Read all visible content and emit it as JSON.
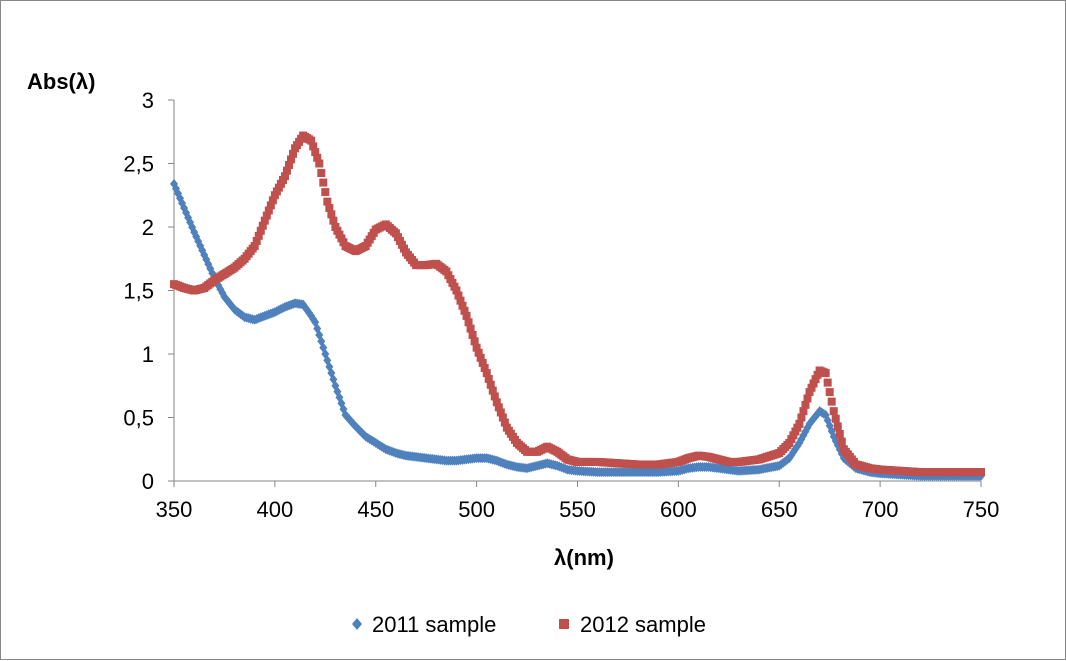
{
  "chart_data": {
    "type": "scatter",
    "xlabel": "λ(nm)",
    "ylabel": "Abs(λ)",
    "xlim": [
      350,
      750
    ],
    "ylim": [
      0,
      3
    ],
    "x_ticks": [
      "350",
      "400",
      "450",
      "500",
      "550",
      "600",
      "650",
      "700",
      "750"
    ],
    "y_ticks": [
      "0",
      "0,5",
      "1",
      "1,5",
      "2",
      "2,5",
      "3"
    ],
    "grid": false,
    "legend_position": "bottom",
    "series": [
      {
        "name": "2011 sample",
        "color": "#4F81BD",
        "marker": "diamond",
        "points": [
          [
            350,
            2.34
          ],
          [
            355,
            2.15
          ],
          [
            360,
            1.96
          ],
          [
            365,
            1.78
          ],
          [
            370,
            1.6
          ],
          [
            375,
            1.45
          ],
          [
            380,
            1.35
          ],
          [
            385,
            1.29
          ],
          [
            390,
            1.27
          ],
          [
            395,
            1.3
          ],
          [
            400,
            1.33
          ],
          [
            405,
            1.37
          ],
          [
            410,
            1.4
          ],
          [
            414,
            1.39
          ],
          [
            418,
            1.3
          ],
          [
            420,
            1.25
          ],
          [
            425,
            1.0
          ],
          [
            430,
            0.75
          ],
          [
            435,
            0.52
          ],
          [
            440,
            0.43
          ],
          [
            445,
            0.35
          ],
          [
            450,
            0.3
          ],
          [
            455,
            0.25
          ],
          [
            460,
            0.22
          ],
          [
            465,
            0.2
          ],
          [
            470,
            0.19
          ],
          [
            475,
            0.18
          ],
          [
            480,
            0.17
          ],
          [
            485,
            0.16
          ],
          [
            490,
            0.16
          ],
          [
            495,
            0.17
          ],
          [
            500,
            0.18
          ],
          [
            505,
            0.18
          ],
          [
            510,
            0.16
          ],
          [
            515,
            0.13
          ],
          [
            520,
            0.11
          ],
          [
            525,
            0.1
          ],
          [
            530,
            0.12
          ],
          [
            535,
            0.14
          ],
          [
            540,
            0.12
          ],
          [
            545,
            0.09
          ],
          [
            550,
            0.08
          ],
          [
            560,
            0.07
          ],
          [
            570,
            0.07
          ],
          [
            580,
            0.07
          ],
          [
            590,
            0.07
          ],
          [
            600,
            0.08
          ],
          [
            605,
            0.1
          ],
          [
            610,
            0.11
          ],
          [
            615,
            0.11
          ],
          [
            620,
            0.1
          ],
          [
            625,
            0.09
          ],
          [
            630,
            0.08
          ],
          [
            640,
            0.09
          ],
          [
            650,
            0.12
          ],
          [
            655,
            0.18
          ],
          [
            660,
            0.3
          ],
          [
            665,
            0.45
          ],
          [
            670,
            0.55
          ],
          [
            673,
            0.52
          ],
          [
            677,
            0.35
          ],
          [
            682,
            0.18
          ],
          [
            688,
            0.1
          ],
          [
            695,
            0.07
          ],
          [
            700,
            0.06
          ],
          [
            710,
            0.05
          ],
          [
            720,
            0.04
          ],
          [
            730,
            0.04
          ],
          [
            740,
            0.04
          ],
          [
            750,
            0.04
          ]
        ]
      },
      {
        "name": "2012 sample",
        "color": "#C0504D",
        "marker": "square",
        "points": [
          [
            350,
            1.55
          ],
          [
            355,
            1.52
          ],
          [
            360,
            1.5
          ],
          [
            365,
            1.52
          ],
          [
            370,
            1.58
          ],
          [
            375,
            1.63
          ],
          [
            380,
            1.68
          ],
          [
            385,
            1.75
          ],
          [
            390,
            1.85
          ],
          [
            395,
            2.05
          ],
          [
            400,
            2.25
          ],
          [
            405,
            2.4
          ],
          [
            410,
            2.62
          ],
          [
            414,
            2.72
          ],
          [
            418,
            2.68
          ],
          [
            422,
            2.5
          ],
          [
            426,
            2.2
          ],
          [
            430,
            2.0
          ],
          [
            435,
            1.85
          ],
          [
            440,
            1.81
          ],
          [
            445,
            1.85
          ],
          [
            450,
            1.98
          ],
          [
            455,
            2.02
          ],
          [
            460,
            1.95
          ],
          [
            465,
            1.8
          ],
          [
            470,
            1.7
          ],
          [
            475,
            1.7
          ],
          [
            480,
            1.71
          ],
          [
            485,
            1.65
          ],
          [
            490,
            1.5
          ],
          [
            495,
            1.3
          ],
          [
            500,
            1.05
          ],
          [
            505,
            0.85
          ],
          [
            510,
            0.62
          ],
          [
            515,
            0.42
          ],
          [
            520,
            0.3
          ],
          [
            525,
            0.23
          ],
          [
            530,
            0.23
          ],
          [
            535,
            0.27
          ],
          [
            540,
            0.23
          ],
          [
            545,
            0.17
          ],
          [
            550,
            0.15
          ],
          [
            560,
            0.15
          ],
          [
            570,
            0.14
          ],
          [
            580,
            0.13
          ],
          [
            590,
            0.13
          ],
          [
            600,
            0.15
          ],
          [
            605,
            0.18
          ],
          [
            610,
            0.2
          ],
          [
            615,
            0.19
          ],
          [
            620,
            0.17
          ],
          [
            625,
            0.15
          ],
          [
            630,
            0.15
          ],
          [
            640,
            0.17
          ],
          [
            650,
            0.22
          ],
          [
            655,
            0.3
          ],
          [
            660,
            0.45
          ],
          [
            665,
            0.7
          ],
          [
            670,
            0.87
          ],
          [
            673,
            0.85
          ],
          [
            677,
            0.55
          ],
          [
            682,
            0.25
          ],
          [
            688,
            0.13
          ],
          [
            695,
            0.1
          ],
          [
            700,
            0.09
          ],
          [
            710,
            0.08
          ],
          [
            720,
            0.07
          ],
          [
            730,
            0.07
          ],
          [
            740,
            0.07
          ],
          [
            750,
            0.07
          ]
        ]
      }
    ]
  }
}
